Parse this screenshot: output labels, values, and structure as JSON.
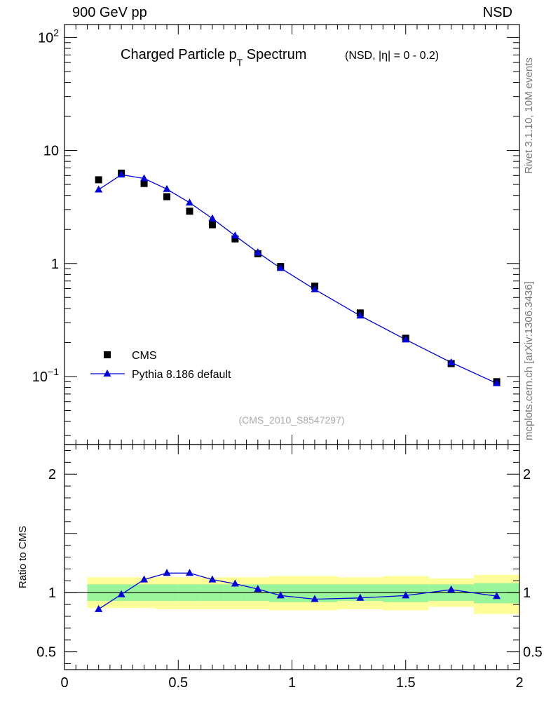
{
  "header": {
    "left": "900 GeV pp",
    "right": "NSD"
  },
  "side_labels": {
    "rivet": "Rivet 3.1.10,  10M events",
    "source": "mcplots.cern.ch [arXiv:1306.3436]"
  },
  "chart_data": {
    "type": "scatter",
    "title": {
      "main": "Charged Particle p",
      "subscript": "T",
      "main_after": " Spectrum",
      "suffix": "(NSD, |η| =   0 - 0.2)"
    },
    "analysis_tag": "(CMS_2010_S8547297)",
    "x": [
      0.15,
      0.25,
      0.35,
      0.45,
      0.55,
      0.65,
      0.75,
      0.85,
      0.95,
      1.1,
      1.3,
      1.5,
      1.7,
      1.9
    ],
    "xlim": [
      0,
      2
    ],
    "x_ticks": [
      "0",
      "0.5",
      "1",
      "1.5",
      "2"
    ],
    "upper": {
      "yscale": "log",
      "ylim": [
        0.025,
        130
      ],
      "y_ticks": [
        {
          "base": "10",
          "exp": "2",
          "value": 100
        },
        {
          "base": "10",
          "exp": "",
          "value": 10
        },
        {
          "base": "1",
          "exp": "",
          "value": 1
        },
        {
          "base": "10",
          "exp": "−1",
          "value": 0.1
        }
      ],
      "series": [
        {
          "name": "CMS",
          "marker": "square",
          "color": "#000000",
          "values": [
            5.5,
            6.3,
            5.1,
            3.9,
            2.9,
            2.2,
            1.65,
            1.22,
            0.94,
            0.63,
            0.365,
            0.218,
            0.13,
            0.09
          ]
        },
        {
          "name": "Pythia 8.186 default",
          "marker": "triangle",
          "line": true,
          "color": "#0000dd",
          "values": [
            4.5,
            6.1,
            5.65,
            4.55,
            3.45,
            2.5,
            1.76,
            1.25,
            0.91,
            0.59,
            0.345,
            0.212,
            0.133,
            0.087
          ]
        }
      ],
      "legend_position": "bottom-left"
    },
    "lower": {
      "ylabel": "Ratio to CMS",
      "ylim": [
        0.35,
        2.25
      ],
      "y_ticks": [
        "0.5",
        "1",
        "2"
      ],
      "y_tick_values": [
        0.5,
        1,
        2
      ],
      "bands": [
        {
          "x0": 0.1,
          "x1": 0.2,
          "inner": [
            0.93,
            1.07
          ],
          "outer": [
            0.87,
            1.13
          ]
        },
        {
          "x0": 0.2,
          "x1": 0.3,
          "inner": [
            0.93,
            1.07
          ],
          "outer": [
            0.87,
            1.13
          ]
        },
        {
          "x0": 0.3,
          "x1": 0.4,
          "inner": [
            0.93,
            1.07
          ],
          "outer": [
            0.87,
            1.13
          ]
        },
        {
          "x0": 0.4,
          "x1": 0.5,
          "inner": [
            0.93,
            1.07
          ],
          "outer": [
            0.86,
            1.13
          ]
        },
        {
          "x0": 0.5,
          "x1": 0.6,
          "inner": [
            0.93,
            1.07
          ],
          "outer": [
            0.86,
            1.13
          ]
        },
        {
          "x0": 0.6,
          "x1": 0.7,
          "inner": [
            0.93,
            1.07
          ],
          "outer": [
            0.86,
            1.13
          ]
        },
        {
          "x0": 0.7,
          "x1": 0.8,
          "inner": [
            0.93,
            1.07
          ],
          "outer": [
            0.86,
            1.13
          ]
        },
        {
          "x0": 0.8,
          "x1": 0.9,
          "inner": [
            0.93,
            1.07
          ],
          "outer": [
            0.86,
            1.13
          ]
        },
        {
          "x0": 0.9,
          "x1": 1.0,
          "inner": [
            0.92,
            1.07
          ],
          "outer": [
            0.85,
            1.14
          ]
        },
        {
          "x0": 1.0,
          "x1": 1.2,
          "inner": [
            0.92,
            1.07
          ],
          "outer": [
            0.85,
            1.14
          ]
        },
        {
          "x0": 1.2,
          "x1": 1.4,
          "inner": [
            0.93,
            1.07
          ],
          "outer": [
            0.86,
            1.13
          ]
        },
        {
          "x0": 1.4,
          "x1": 1.6,
          "inner": [
            0.92,
            1.07
          ],
          "outer": [
            0.85,
            1.14
          ]
        },
        {
          "x0": 1.6,
          "x1": 1.8,
          "inner": [
            0.93,
            1.07
          ],
          "outer": [
            0.88,
            1.12
          ]
        },
        {
          "x0": 1.8,
          "x1": 2.0,
          "inner": [
            0.91,
            1.08
          ],
          "outer": [
            0.82,
            1.15
          ]
        }
      ],
      "ratio": [
        0.86,
        0.985,
        1.11,
        1.165,
        1.165,
        1.11,
        1.075,
        1.03,
        0.975,
        0.945,
        0.955,
        0.975,
        1.025,
        0.97
      ],
      "colors": {
        "inner": "#99f599",
        "outer": "#fdfd9a",
        "line": "#0000dd"
      }
    }
  }
}
